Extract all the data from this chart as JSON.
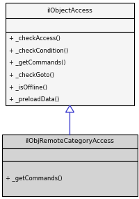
{
  "bg_color": "#ffffff",
  "box_fill_parent": "#f5f5f5",
  "box_fill_child": "#d3d3d3",
  "box_edge": "#000000",
  "arrow_color": "#3333cc",
  "parent_class": {
    "name": "ilObjectAccess",
    "methods": [
      "+ _checkAccess()",
      "+ _checkCondition()",
      "+ _getCommands()",
      "+ _checkGoto()",
      "+ _isOffline()",
      "+ _preloadData()"
    ]
  },
  "child_class": {
    "name": "ilObjRemoteCategoryAccess",
    "methods": [
      "+ _getCommands()"
    ]
  },
  "font_size_title": 6.5,
  "font_size_method": 6.0
}
